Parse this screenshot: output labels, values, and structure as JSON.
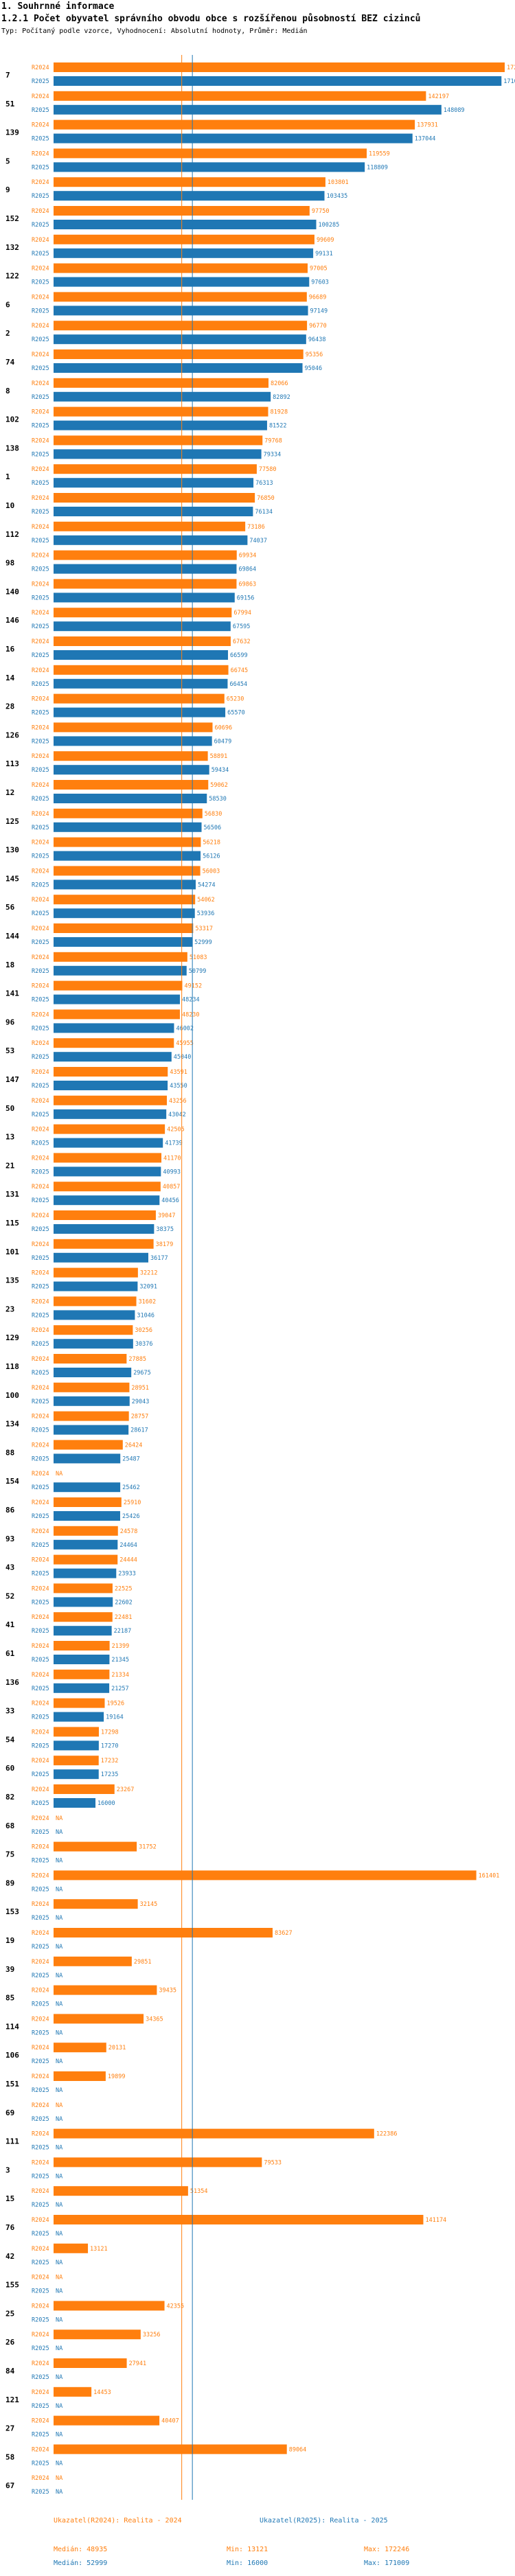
{
  "header": {
    "section": "1. Souhrnné informace",
    "title": "1.2.1 Počet obyvatel správního obvodu obce s rozšířenou působností BEZ cizinců",
    "subtitle": "Typ: Počítaný podle vzorce, Vyhodnocení: Absolutní hodnoty, Průměr: Medián"
  },
  "chart_data": {
    "type": "bar",
    "orientation": "horizontal",
    "x_max": 172246,
    "series": [
      {
        "name": "R2024",
        "color": "#ff7f0e"
      },
      {
        "name": "R2025",
        "color": "#1f77b4"
      }
    ],
    "reference_lines": {
      "median_2024": 48935,
      "median_2025": 52999
    },
    "categories": [
      {
        "id": "7",
        "r2024": 172246,
        "r2025": 171009
      },
      {
        "id": "51",
        "r2024": 142197,
        "r2025": 148089
      },
      {
        "id": "139",
        "r2024": 137931,
        "r2025": 137044
      },
      {
        "id": "5",
        "r2024": 119559,
        "r2025": 118809
      },
      {
        "id": "9",
        "r2024": 103801,
        "r2025": 103435
      },
      {
        "id": "152",
        "r2024": 97750,
        "r2025": 100285
      },
      {
        "id": "132",
        "r2024": 99609,
        "r2025": 99131
      },
      {
        "id": "122",
        "r2024": 97005,
        "r2025": 97603
      },
      {
        "id": "6",
        "r2024": 96689,
        "r2025": 97149
      },
      {
        "id": "2",
        "r2024": 96770,
        "r2025": 96438
      },
      {
        "id": "74",
        "r2024": 95356,
        "r2025": 95046
      },
      {
        "id": "8",
        "r2024": 82066,
        "r2025": 82892
      },
      {
        "id": "102",
        "r2024": 81928,
        "r2025": 81522
      },
      {
        "id": "138",
        "r2024": 79768,
        "r2025": 79334
      },
      {
        "id": "1",
        "r2024": 77580,
        "r2025": 76313
      },
      {
        "id": "10",
        "r2024": 76850,
        "r2025": 76134
      },
      {
        "id": "112",
        "r2024": 73186,
        "r2025": 74037
      },
      {
        "id": "98",
        "r2024": 69934,
        "r2025": 69864
      },
      {
        "id": "140",
        "r2024": 69863,
        "r2025": 69156
      },
      {
        "id": "146",
        "r2024": 67994,
        "r2025": 67595
      },
      {
        "id": "16",
        "r2024": 67632,
        "r2025": 66599
      },
      {
        "id": "14",
        "r2024": 66745,
        "r2025": 66454
      },
      {
        "id": "28",
        "r2024": 65230,
        "r2025": 65570
      },
      {
        "id": "126",
        "r2024": 60696,
        "r2025": 60479
      },
      {
        "id": "113",
        "r2024": 58891,
        "r2025": 59434
      },
      {
        "id": "12",
        "r2024": 59062,
        "r2025": 58530
      },
      {
        "id": "125",
        "r2024": 56830,
        "r2025": 56506
      },
      {
        "id": "130",
        "r2024": 56218,
        "r2025": 56126
      },
      {
        "id": "145",
        "r2024": 56003,
        "r2025": 54274
      },
      {
        "id": "56",
        "r2024": 54062,
        "r2025": 53936
      },
      {
        "id": "144",
        "r2024": 53317,
        "r2025": 52999
      },
      {
        "id": "18",
        "r2024": 51083,
        "r2025": 50799
      },
      {
        "id": "141",
        "r2024": 49152,
        "r2025": 48234
      },
      {
        "id": "96",
        "r2024": 48230,
        "r2025": 46002
      },
      {
        "id": "53",
        "r2024": 45955,
        "r2025": 45040
      },
      {
        "id": "147",
        "r2024": 43591,
        "r2025": 43550
      },
      {
        "id": "50",
        "r2024": 43256,
        "r2025": 43042
      },
      {
        "id": "13",
        "r2024": 42505,
        "r2025": 41739
      },
      {
        "id": "21",
        "r2024": 41170,
        "r2025": 40993
      },
      {
        "id": "131",
        "r2024": 40857,
        "r2025": 40456
      },
      {
        "id": "115",
        "r2024": 39047,
        "r2025": 38375
      },
      {
        "id": "101",
        "r2024": 38179,
        "r2025": 36177
      },
      {
        "id": "135",
        "r2024": 32212,
        "r2025": 32091
      },
      {
        "id": "23",
        "r2024": 31602,
        "r2025": 31046
      },
      {
        "id": "129",
        "r2024": 30256,
        "r2025": 30376
      },
      {
        "id": "118",
        "r2024": 27885,
        "r2025": 29675
      },
      {
        "id": "100",
        "r2024": 28951,
        "r2025": 29043
      },
      {
        "id": "134",
        "r2024": 28757,
        "r2025": 28617
      },
      {
        "id": "88",
        "r2024": 26424,
        "r2025": 25487
      },
      {
        "id": "154",
        "r2024": null,
        "r2025": 25462
      },
      {
        "id": "86",
        "r2024": 25910,
        "r2025": 25426
      },
      {
        "id": "93",
        "r2024": 24578,
        "r2025": 24464
      },
      {
        "id": "43",
        "r2024": 24444,
        "r2025": 23933
      },
      {
        "id": "52",
        "r2024": 22525,
        "r2025": 22602
      },
      {
        "id": "41",
        "r2024": 22481,
        "r2025": 22187
      },
      {
        "id": "61",
        "r2024": 21399,
        "r2025": 21345
      },
      {
        "id": "136",
        "r2024": 21334,
        "r2025": 21257
      },
      {
        "id": "33",
        "r2024": 19526,
        "r2025": 19164
      },
      {
        "id": "54",
        "r2024": 17298,
        "r2025": 17270
      },
      {
        "id": "60",
        "r2024": 17232,
        "r2025": 17235
      },
      {
        "id": "82",
        "r2024": 23267,
        "r2025": 16000
      },
      {
        "id": "68",
        "r2024": null,
        "r2025": null
      },
      {
        "id": "75",
        "r2024": 31752,
        "r2025": null
      },
      {
        "id": "89",
        "r2024": 161401,
        "r2025": null
      },
      {
        "id": "153",
        "r2024": 32145,
        "r2025": null
      },
      {
        "id": "19",
        "r2024": 83627,
        "r2025": null
      },
      {
        "id": "39",
        "r2024": 29851,
        "r2025": null
      },
      {
        "id": "85",
        "r2024": 39435,
        "r2025": null
      },
      {
        "id": "114",
        "r2024": 34365,
        "r2025": null
      },
      {
        "id": "106",
        "r2024": 20131,
        "r2025": null
      },
      {
        "id": "151",
        "r2024": 19899,
        "r2025": null
      },
      {
        "id": "69",
        "r2024": null,
        "r2025": null
      },
      {
        "id": "111",
        "r2024": 122386,
        "r2025": null
      },
      {
        "id": "3",
        "r2024": 79533,
        "r2025": null
      },
      {
        "id": "15",
        "r2024": 51354,
        "r2025": null
      },
      {
        "id": "76",
        "r2024": 141174,
        "r2025": null
      },
      {
        "id": "42",
        "r2024": 13121,
        "r2025": null
      },
      {
        "id": "155",
        "r2024": null,
        "r2025": null
      },
      {
        "id": "25",
        "r2024": 42355,
        "r2025": null
      },
      {
        "id": "26",
        "r2024": 33256,
        "r2025": null
      },
      {
        "id": "84",
        "r2024": 27941,
        "r2025": null
      },
      {
        "id": "121",
        "r2024": 14453,
        "r2025": null
      },
      {
        "id": "27",
        "r2024": 40407,
        "r2025": null
      },
      {
        "id": "58",
        "r2024": 89064,
        "r2025": null
      },
      {
        "id": "67",
        "r2024": null,
        "r2025": null
      }
    ],
    "na_label": "NA"
  },
  "footer": {
    "left_title": "Ukazatel(R2024): Realita - 2024",
    "right_title": "Ukazatel(R2025): Realita - 2025",
    "left_median": "Medián: 48935",
    "left_min": "Min: 13121",
    "left_max": "Max: 172246",
    "right_median": "Medián: 52999",
    "right_min": "Min: 16000",
    "right_max": "Max: 171009"
  }
}
